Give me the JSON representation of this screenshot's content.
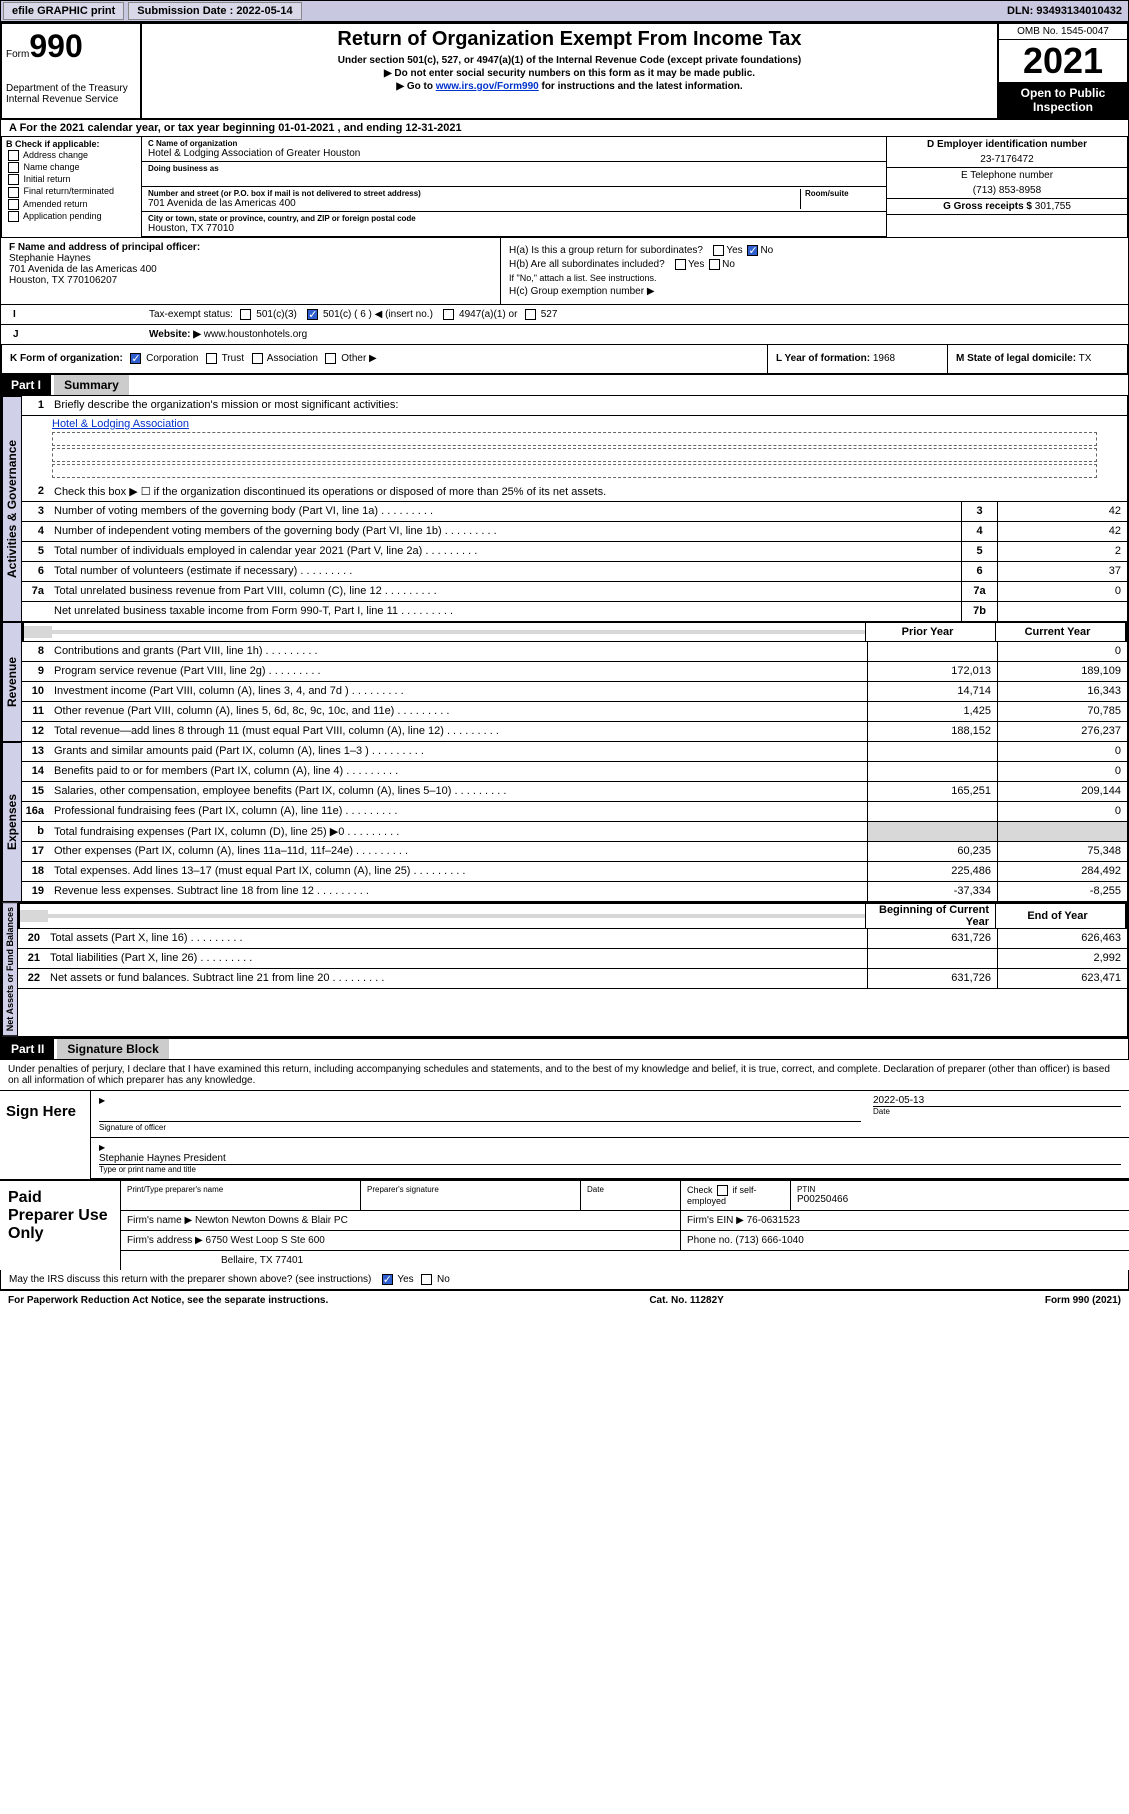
{
  "topbar": {
    "efile": "efile GRAPHIC print",
    "subdate_lbl": "Submission Date : 2022-05-14",
    "dln": "DLN: 93493134010432"
  },
  "header": {
    "form_word": "Form",
    "form_num": "990",
    "dept": "Department of the Treasury",
    "irs": "Internal Revenue Service",
    "title": "Return of Organization Exempt From Income Tax",
    "sub1": "Under section 501(c), 527, or 4947(a)(1) of the Internal Revenue Code (except private foundations)",
    "sub2": "▶ Do not enter social security numbers on this form as it may be made public.",
    "sub3_pre": "▶ Go to ",
    "sub3_link": "www.irs.gov/Form990",
    "sub3_post": " for instructions and the latest information.",
    "omb": "OMB No. 1545-0047",
    "year": "2021",
    "inspect": "Open to Public Inspection"
  },
  "line_a": "A For the 2021 calendar year, or tax year beginning 01-01-2021   , and ending 12-31-2021",
  "box_b": {
    "title": "B Check if applicable:",
    "items": [
      "Address change",
      "Name change",
      "Initial return",
      "Final return/terminated",
      "Amended return",
      "Application pending"
    ]
  },
  "box_c": {
    "name_lbl": "C Name of organization",
    "name": "Hotel & Lodging Association of Greater Houston",
    "dba_lbl": "Doing business as",
    "addr_lbl": "Number and street (or P.O. box if mail is not delivered to street address)",
    "room_lbl": "Room/suite",
    "addr": "701 Avenida de las Americas 400",
    "city_lbl": "City or town, state or province, country, and ZIP or foreign postal code",
    "city": "Houston, TX  77010"
  },
  "box_d": {
    "lbl": "D Employer identification number",
    "val": "23-7176472"
  },
  "box_e": {
    "lbl": "E Telephone number",
    "val": "(713) 853-8958"
  },
  "box_g": {
    "lbl": "G Gross receipts $",
    "val": "301,755"
  },
  "box_f": {
    "lbl": "F  Name and address of principal officer:",
    "name": "Stephanie Haynes",
    "addr": "701 Avenida de las Americas 400",
    "city": "Houston, TX  770106207"
  },
  "box_h": {
    "a": "H(a)  Is this a group return for subordinates?",
    "b": "H(b)  Are all subordinates included?",
    "b_note": "If \"No,\" attach a list. See instructions.",
    "c": "H(c)  Group exemption number ▶",
    "yes": "Yes",
    "no": "No"
  },
  "line_i": {
    "lbl": "Tax-exempt status:",
    "o1": "501(c)(3)",
    "o2": "501(c) ( 6 ) ◀ (insert no.)",
    "o3": "4947(a)(1) or",
    "o4": "527"
  },
  "line_j": {
    "lbl": "Website: ▶",
    "val": "www.houstonhotels.org"
  },
  "line_k": {
    "lbl": "K Form of organization:",
    "o1": "Corporation",
    "o2": "Trust",
    "o3": "Association",
    "o4": "Other ▶"
  },
  "line_l": {
    "lbl": "L Year of formation:",
    "val": "1968"
  },
  "line_m": {
    "lbl": "M State of legal domicile:",
    "val": "TX"
  },
  "part1": {
    "hdr": "Part I",
    "title": "Summary"
  },
  "summary": {
    "q1": "Briefly describe the organization's mission or most significant activities:",
    "q1_val": "Hotel & Lodging Association",
    "q2": "Check this box ▶ ☐  if the organization discontinued its operations or disposed of more than 25% of its net assets.",
    "rows_gov": [
      {
        "n": "3",
        "d": "Number of voting members of the governing body (Part VI, line 1a)",
        "b": "3",
        "v": "42"
      },
      {
        "n": "4",
        "d": "Number of independent voting members of the governing body (Part VI, line 1b)",
        "b": "4",
        "v": "42"
      },
      {
        "n": "5",
        "d": "Total number of individuals employed in calendar year 2021 (Part V, line 2a)",
        "b": "5",
        "v": "2"
      },
      {
        "n": "6",
        "d": "Total number of volunteers (estimate if necessary)",
        "b": "6",
        "v": "37"
      },
      {
        "n": "7a",
        "d": "Total unrelated business revenue from Part VIII, column (C), line 12",
        "b": "7a",
        "v": "0"
      },
      {
        "n": "",
        "d": "Net unrelated business taxable income from Form 990-T, Part I, line 11",
        "b": "7b",
        "v": ""
      }
    ],
    "col_prior": "Prior Year",
    "col_curr": "Current Year",
    "rows_rev": [
      {
        "n": "8",
        "d": "Contributions and grants (Part VIII, line 1h)",
        "p": "",
        "c": "0"
      },
      {
        "n": "9",
        "d": "Program service revenue (Part VIII, line 2g)",
        "p": "172,013",
        "c": "189,109"
      },
      {
        "n": "10",
        "d": "Investment income (Part VIII, column (A), lines 3, 4, and 7d )",
        "p": "14,714",
        "c": "16,343"
      },
      {
        "n": "11",
        "d": "Other revenue (Part VIII, column (A), lines 5, 6d, 8c, 9c, 10c, and 11e)",
        "p": "1,425",
        "c": "70,785"
      },
      {
        "n": "12",
        "d": "Total revenue—add lines 8 through 11 (must equal Part VIII, column (A), line 12)",
        "p": "188,152",
        "c": "276,237"
      }
    ],
    "rows_exp": [
      {
        "n": "13",
        "d": "Grants and similar amounts paid (Part IX, column (A), lines 1–3 )",
        "p": "",
        "c": "0"
      },
      {
        "n": "14",
        "d": "Benefits paid to or for members (Part IX, column (A), line 4)",
        "p": "",
        "c": "0"
      },
      {
        "n": "15",
        "d": "Salaries, other compensation, employee benefits (Part IX, column (A), lines 5–10)",
        "p": "165,251",
        "c": "209,144"
      },
      {
        "n": "16a",
        "d": "Professional fundraising fees (Part IX, column (A), line 11e)",
        "p": "",
        "c": "0"
      },
      {
        "n": "b",
        "d": "Total fundraising expenses (Part IX, column (D), line 25) ▶0",
        "p": "shade",
        "c": "shade"
      },
      {
        "n": "17",
        "d": "Other expenses (Part IX, column (A), lines 11a–11d, 11f–24e)",
        "p": "60,235",
        "c": "75,348"
      },
      {
        "n": "18",
        "d": "Total expenses. Add lines 13–17 (must equal Part IX, column (A), line 25)",
        "p": "225,486",
        "c": "284,492"
      },
      {
        "n": "19",
        "d": "Revenue less expenses. Subtract line 18 from line 12",
        "p": "-37,334",
        "c": "-8,255"
      }
    ],
    "col_beg": "Beginning of Current Year",
    "col_end": "End of Year",
    "rows_net": [
      {
        "n": "20",
        "d": "Total assets (Part X, line 16)",
        "p": "631,726",
        "c": "626,463"
      },
      {
        "n": "21",
        "d": "Total liabilities (Part X, line 26)",
        "p": "",
        "c": "2,992"
      },
      {
        "n": "22",
        "d": "Net assets or fund balances. Subtract line 21 from line 20",
        "p": "631,726",
        "c": "623,471"
      }
    ]
  },
  "vlabels": {
    "gov": "Activities & Governance",
    "rev": "Revenue",
    "exp": "Expenses",
    "net": "Net Assets or Fund Balances"
  },
  "part2": {
    "hdr": "Part II",
    "title": "Signature Block"
  },
  "sig": {
    "decl": "Under penalties of perjury, I declare that I have examined this return, including accompanying schedules and statements, and to the best of my knowledge and belief, it is true, correct, and complete. Declaration of preparer (other than officer) is based on all information of which preparer has any knowledge.",
    "here": "Sign Here",
    "officer_lbl": "Signature of officer",
    "date_lbl": "Date",
    "date": "2022-05-13",
    "name": "Stephanie Haynes President",
    "name_lbl": "Type or print name and title"
  },
  "prep": {
    "lbl": "Paid Preparer Use Only",
    "h1": "Print/Type preparer's name",
    "h2": "Preparer's signature",
    "h3": "Date",
    "h4_pre": "Check",
    "h4_post": "if self-employed",
    "h5": "PTIN",
    "ptin": "P00250466",
    "firm_lbl": "Firm's name   ▶",
    "firm": "Newton Newton Downs & Blair PC",
    "ein_lbl": "Firm's EIN ▶",
    "ein": "76-0631523",
    "addr_lbl": "Firm's address ▶",
    "addr1": "6750 West Loop S Ste 600",
    "addr2": "Bellaire, TX  77401",
    "phone_lbl": "Phone no.",
    "phone": "(713) 666-1040"
  },
  "footer": {
    "discuss": "May the IRS discuss this return with the preparer shown above? (see instructions)",
    "yes": "Yes",
    "no": "No",
    "pra": "For Paperwork Reduction Act Notice, see the separate instructions.",
    "cat": "Cat. No. 11282Y",
    "form": "Form 990 (2021)"
  }
}
